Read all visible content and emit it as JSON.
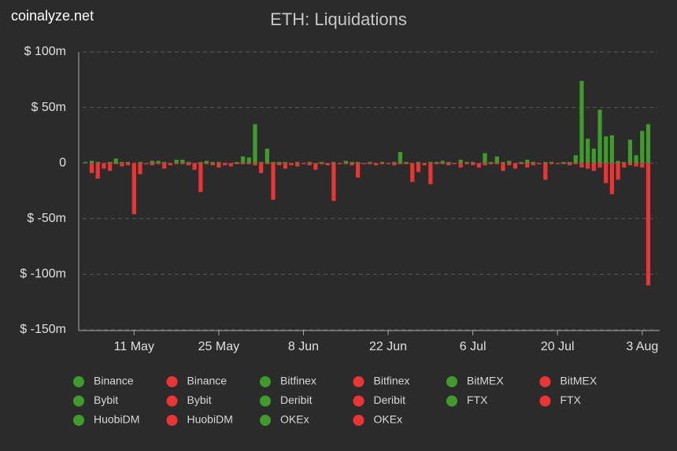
{
  "site": "coinalyze.net",
  "chart_data": {
    "type": "bar",
    "title": "ETH: Liquidations",
    "categories": [
      null,
      null,
      null,
      null,
      null,
      null,
      null,
      null,
      "11 May",
      null,
      null,
      null,
      null,
      null,
      null,
      null,
      null,
      null,
      null,
      null,
      null,
      null,
      "25 May",
      null,
      null,
      null,
      null,
      null,
      null,
      null,
      null,
      null,
      null,
      null,
      null,
      null,
      "8 Jun",
      null,
      null,
      null,
      null,
      null,
      null,
      null,
      null,
      null,
      null,
      null,
      null,
      null,
      "22 Jun",
      null,
      null,
      null,
      null,
      null,
      null,
      null,
      null,
      null,
      null,
      null,
      null,
      null,
      "6 Jul",
      null,
      null,
      null,
      null,
      null,
      null,
      null,
      null,
      null,
      null,
      null,
      null,
      null,
      "20 Jul",
      null,
      null,
      null,
      null,
      null,
      null,
      null,
      null,
      null,
      null,
      null,
      null,
      null,
      "3 Aug",
      null,
      null
    ],
    "series": [
      {
        "color": "#3e9b2c",
        "values": [
          1,
          2,
          1,
          0,
          1,
          4,
          1,
          1,
          0,
          1,
          0,
          2,
          2,
          1,
          0,
          3,
          3,
          1,
          0,
          1,
          2,
          1,
          1,
          0,
          0,
          1,
          6,
          5,
          35,
          1,
          13,
          1,
          1,
          1,
          0,
          1,
          0,
          1,
          0,
          1,
          0,
          1,
          0,
          2,
          1,
          1,
          0,
          1,
          0,
          1,
          0,
          1,
          10,
          1,
          0,
          1,
          0,
          1,
          1,
          2,
          1,
          0,
          3,
          1,
          1,
          0,
          9,
          1,
          6,
          1,
          2,
          0,
          1,
          3,
          1,
          0,
          1,
          1,
          0,
          1,
          1,
          7,
          74,
          22,
          13,
          48,
          24,
          25,
          2,
          1,
          21,
          7,
          29,
          35,
          0
        ]
      },
      {
        "color": "#ec3434",
        "values": [
          0,
          -9,
          -14,
          -5,
          -7,
          -1,
          -3,
          -2,
          -46,
          -10,
          -1,
          -2,
          -1,
          -5,
          -2,
          -1,
          -1,
          -2,
          -6,
          -26,
          -1,
          -2,
          -4,
          -2,
          -3,
          -1,
          -1,
          -1,
          -2,
          -9,
          -1,
          -33,
          -2,
          -5,
          -2,
          -3,
          -1,
          -2,
          -6,
          -1,
          -2,
          -34,
          -1,
          -1,
          -2,
          -13,
          -1,
          -1,
          -2,
          -1,
          -1,
          -2,
          -1,
          -1,
          -17,
          -8,
          -2,
          -19,
          -1,
          -1,
          -2,
          -1,
          -4,
          -1,
          -2,
          -4,
          -2,
          -1,
          -1,
          -7,
          -2,
          -5,
          -1,
          -4,
          -2,
          -1,
          -15,
          -1,
          -1,
          -1,
          -2,
          -1,
          -4,
          -5,
          -7,
          -4,
          -18,
          -28,
          -15,
          -4,
          -2,
          -3,
          -4,
          -110,
          0
        ]
      }
    ],
    "ylim": [
      -150,
      100
    ],
    "yticks": [
      {
        "value": 100,
        "label": "$ 100m"
      },
      {
        "value": 50,
        "label": "$ 50m"
      },
      0,
      {
        "value": -50,
        "label": "$ -50m"
      },
      {
        "value": -100,
        "label": "$ -100m"
      },
      {
        "value": -150,
        "label": "$ -150m"
      }
    ],
    "grid": true,
    "legend": [
      {
        "name": "Binance",
        "color": "#3e9b2c"
      },
      {
        "name": "Binance",
        "color": "#ec3434"
      },
      {
        "name": "Bitfinex",
        "color": "#3e9b2c"
      },
      {
        "name": "Bitfinex",
        "color": "#ec3434"
      },
      {
        "name": "BitMEX",
        "color": "#3e9b2c"
      },
      {
        "name": "BitMEX",
        "color": "#ec3434"
      },
      {
        "name": "Bybit",
        "color": "#3e9b2c"
      },
      {
        "name": "Bybit",
        "color": "#ec3434"
      },
      {
        "name": "Deribit",
        "color": "#3e9b2c"
      },
      {
        "name": "Deribit",
        "color": "#ec3434"
      },
      {
        "name": "FTX",
        "color": "#3e9b2c"
      },
      {
        "name": "FTX",
        "color": "#ec3434"
      },
      {
        "name": "HuobiDM",
        "color": "#3e9b2c"
      },
      {
        "name": "HuobiDM",
        "color": "#ec3434"
      },
      {
        "name": "OKEx",
        "color": "#3e9b2c"
      },
      {
        "name": "OKEx",
        "color": "#ec3434"
      }
    ]
  }
}
